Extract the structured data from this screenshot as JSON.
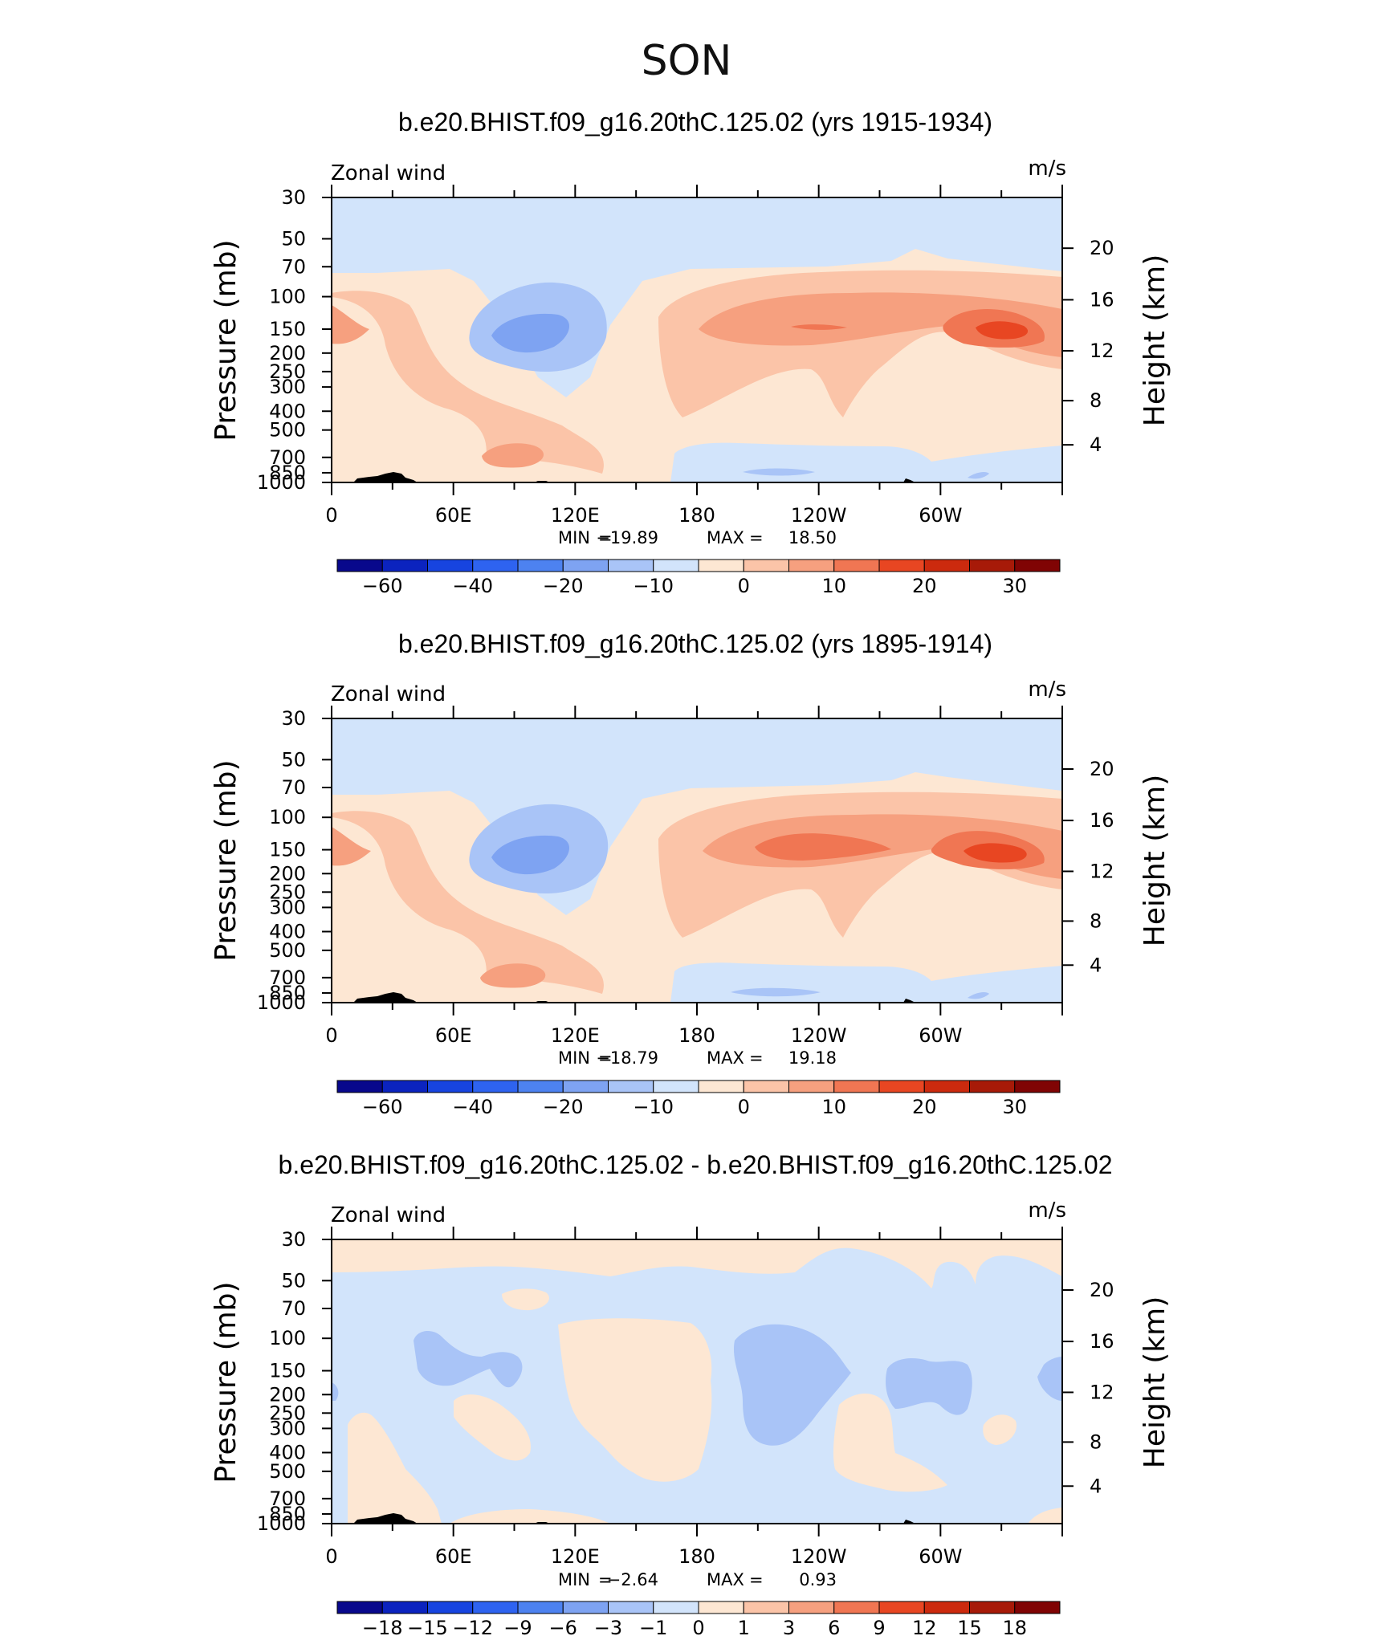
{
  "figure": {
    "super_title": "SON"
  },
  "chart_data": [
    {
      "type": "contour",
      "title": "b.e20.BHIST.f09_g16.20thC.125.02 (yrs 1915-1934)",
      "left_string": "Zonal wind",
      "right_string": "m/s",
      "ylabel": "Pressure (mb)",
      "ylabel_right": "Height (km)",
      "x_ticks": [
        "0",
        "60E",
        "120E",
        "180",
        "120W",
        "60W"
      ],
      "y_ticks": [
        "30",
        "50",
        "70",
        "100",
        "150",
        "200",
        "250",
        "300",
        "400",
        "500",
        "700",
        "850",
        "1000"
      ],
      "y_right_ticks": [
        "20",
        "16",
        "12",
        "8",
        "4"
      ],
      "stats": {
        "min_label": "MIN",
        "min": "−19.89",
        "max_label": "MAX",
        "max": "18.50"
      },
      "colorbar": {
        "labels": [
          "−60",
          "−40",
          "−20",
          "−10",
          "0",
          "10",
          "20",
          "30"
        ],
        "colors": [
          "#08088c",
          "#0b23bf",
          "#1744e0",
          "#2e63f0",
          "#4d82f0",
          "#7ea3f2",
          "#a9c4f7",
          "#d2e4fb",
          "#fde7d3",
          "#fbc4a8",
          "#f6a07f",
          "#f07653",
          "#e84622",
          "#cc2a0e",
          "#a71a08",
          "#800404"
        ]
      }
    },
    {
      "type": "contour",
      "title": "b.e20.BHIST.f09_g16.20thC.125.02 (yrs 1895-1914)",
      "left_string": "Zonal wind",
      "right_string": "m/s",
      "ylabel": "Pressure (mb)",
      "ylabel_right": "Height (km)",
      "x_ticks": [
        "0",
        "60E",
        "120E",
        "180",
        "120W",
        "60W"
      ],
      "y_ticks": [
        "30",
        "50",
        "70",
        "100",
        "150",
        "200",
        "250",
        "300",
        "400",
        "500",
        "700",
        "850",
        "1000"
      ],
      "y_right_ticks": [
        "20",
        "16",
        "12",
        "8",
        "4"
      ],
      "stats": {
        "min_label": "MIN",
        "min": "−18.79",
        "max_label": "MAX",
        "max": "19.18"
      },
      "colorbar": {
        "labels": [
          "−60",
          "−40",
          "−20",
          "−10",
          "0",
          "10",
          "20",
          "30"
        ],
        "colors": [
          "#08088c",
          "#0b23bf",
          "#1744e0",
          "#2e63f0",
          "#4d82f0",
          "#7ea3f2",
          "#a9c4f7",
          "#d2e4fb",
          "#fde7d3",
          "#fbc4a8",
          "#f6a07f",
          "#f07653",
          "#e84622",
          "#cc2a0e",
          "#a71a08",
          "#800404"
        ]
      }
    },
    {
      "type": "contour",
      "title": "b.e20.BHIST.f09_g16.20thC.125.02 - b.e20.BHIST.f09_g16.20thC.125.02",
      "left_string": "Zonal wind",
      "right_string": "m/s",
      "ylabel": "Pressure (mb)",
      "ylabel_right": "Height (km)",
      "x_ticks": [
        "0",
        "60E",
        "120E",
        "180",
        "120W",
        "60W"
      ],
      "y_ticks": [
        "30",
        "50",
        "70",
        "100",
        "150",
        "200",
        "250",
        "300",
        "400",
        "500",
        "700",
        "850",
        "1000"
      ],
      "y_right_ticks": [
        "20",
        "16",
        "12",
        "8",
        "4"
      ],
      "stats": {
        "min_label": "MIN",
        "min": "−2.64",
        "max_label": "MAX",
        "max": "0.93"
      },
      "colorbar": {
        "labels": [
          "−18",
          "−15",
          "−12",
          "−9",
          "−6",
          "−3",
          "−1",
          "0",
          "1",
          "3",
          "6",
          "9",
          "12",
          "15",
          "18"
        ],
        "colors": [
          "#08088c",
          "#0b23bf",
          "#1744e0",
          "#2e63f0",
          "#4d82f0",
          "#7ea3f2",
          "#a9c4f7",
          "#d2e4fb",
          "#fde7d3",
          "#fbc4a8",
          "#f6a07f",
          "#f07653",
          "#e84622",
          "#cc2a0e",
          "#a71a08",
          "#800404"
        ]
      }
    }
  ]
}
